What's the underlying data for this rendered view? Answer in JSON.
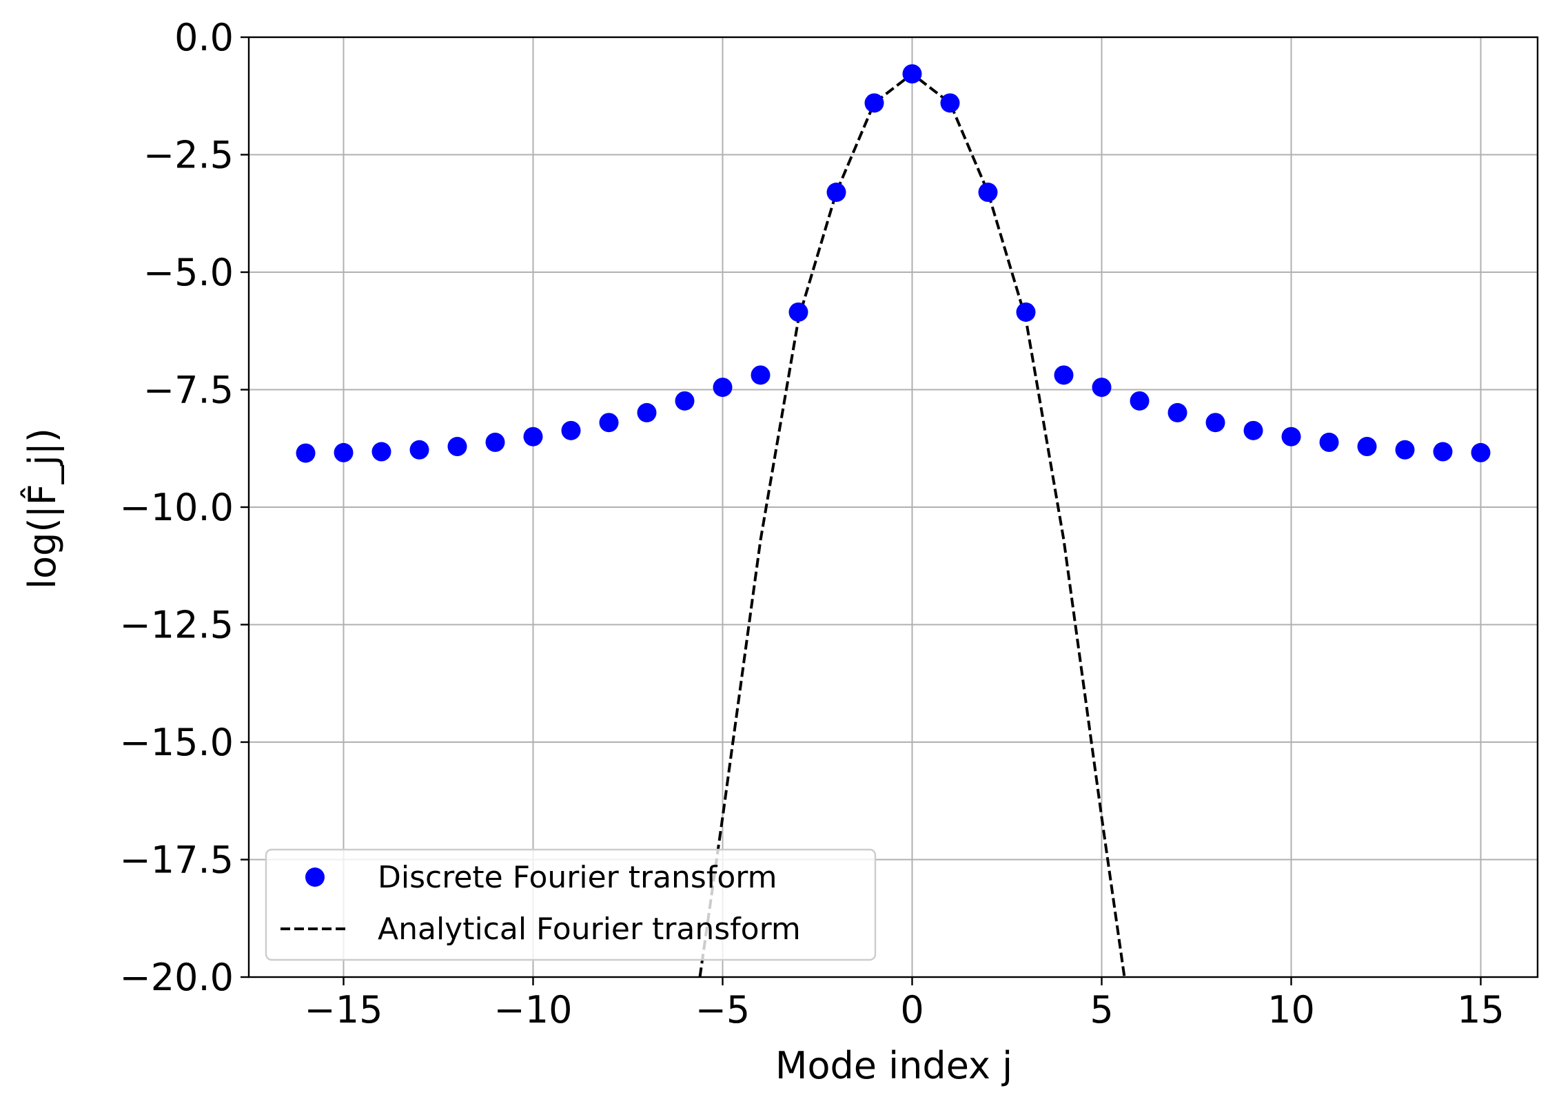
{
  "chart_data": {
    "type": "scatter",
    "xlabel": "Mode index j",
    "ylabel": "log(|F̂_j|)",
    "xlim": [
      -17.5,
      16.5
    ],
    "ylim": [
      -20,
      0
    ],
    "xticks": [
      -15,
      -10,
      -5,
      0,
      5,
      10,
      15
    ],
    "xtick_labels": [
      "−15",
      "−10",
      "−5",
      "0",
      "5",
      "10",
      "15"
    ],
    "yticks": [
      0,
      -2.5,
      -5,
      -7.5,
      -10,
      -12.5,
      -15,
      -17.5,
      -20
    ],
    "ytick_labels": [
      "0.0",
      "−2.5",
      "−5.0",
      "−7.5",
      "−10.0",
      "−12.5",
      "−15.0",
      "−17.5",
      "−20.0"
    ],
    "grid": true,
    "legend_position": "lower-left",
    "series": [
      {
        "name": "Discrete Fourier transform",
        "style": "markers",
        "color": "#0000ff",
        "x": [
          -16,
          -15,
          -14,
          -13,
          -12,
          -11,
          -10,
          -9,
          -8,
          -7,
          -6,
          -5,
          -4,
          -3,
          -2,
          -1,
          0,
          1,
          2,
          3,
          4,
          5,
          6,
          7,
          8,
          9,
          10,
          11,
          12,
          13,
          14,
          15
        ],
        "y": [
          -8.85,
          -8.84,
          -8.82,
          -8.78,
          -8.71,
          -8.62,
          -8.5,
          -8.37,
          -8.2,
          -7.99,
          -7.74,
          -7.45,
          -7.19,
          -5.85,
          -3.3,
          -1.4,
          -0.78,
          -1.4,
          -3.3,
          -5.85,
          -7.19,
          -7.45,
          -7.74,
          -7.99,
          -8.2,
          -8.37,
          -8.5,
          -8.62,
          -8.71,
          -8.78,
          -8.82,
          -8.84
        ]
      },
      {
        "name": "Analytical Fourier transform",
        "style": "dashed",
        "color": "#000000",
        "x": [
          -5.6,
          -5,
          -4,
          -3,
          -2,
          -1,
          0,
          1,
          2,
          3,
          4,
          5,
          5.6
        ],
        "y": [
          -20,
          -16.6,
          -10.7,
          -6.0,
          -3.3,
          -1.4,
          -0.78,
          -1.4,
          -3.3,
          -6.0,
          -10.7,
          -16.6,
          -20
        ]
      }
    ]
  }
}
